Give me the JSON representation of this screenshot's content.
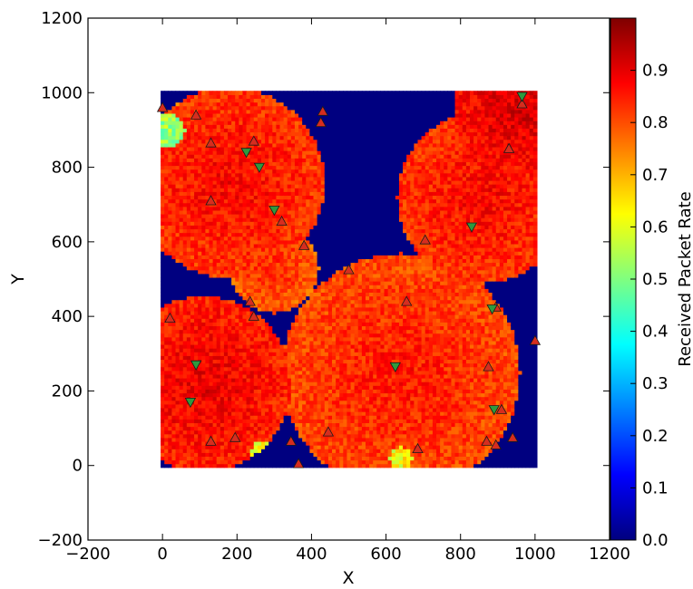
{
  "chart_data": {
    "type": "scatter",
    "xlabel": "X",
    "ylabel": "Y",
    "xlim": [
      -200,
      1200
    ],
    "ylim": [
      -200,
      1200
    ],
    "xticks": [
      "-200",
      "0",
      "200",
      "400",
      "600",
      "800",
      "1000",
      "1200"
    ],
    "yticks": [
      "-200",
      "0",
      "200",
      "400",
      "600",
      "800",
      "1000",
      "1200"
    ],
    "grid": false,
    "heatmap": {
      "extent_x": [
        0,
        1000
      ],
      "extent_y": [
        0,
        1000
      ],
      "coverage_disks": [
        {
          "x": 180,
          "y": 760,
          "r": 255,
          "value": 0.82
        },
        {
          "x": 960,
          "y": 960,
          "r": 175,
          "value": 0.86
        },
        {
          "x": 860,
          "y": 720,
          "r": 230,
          "value": 0.82
        },
        {
          "x": 110,
          "y": 220,
          "r": 235,
          "value": 0.84
        },
        {
          "x": 640,
          "y": 250,
          "r": 320,
          "value": 0.8
        },
        {
          "x": 300,
          "y": 530,
          "r": 120,
          "value": 0.78
        }
      ],
      "low_patches": [
        {
          "x": 15,
          "y": 900,
          "r": 45,
          "value": 0.45
        },
        {
          "x": 28,
          "y": 985,
          "r": 25,
          "value": 0.6
        },
        {
          "x": 640,
          "y": 20,
          "r": 30,
          "value": 0.55
        },
        {
          "x": 275,
          "y": 30,
          "r": 40,
          "value": 0.55
        }
      ]
    },
    "series": [
      {
        "marker": "triangle-up",
        "color": "#d62d1f",
        "points": [
          [
            0,
            960
          ],
          [
            90,
            940
          ],
          [
            430,
            950
          ],
          [
            425,
            920
          ],
          [
            130,
            865
          ],
          [
            245,
            870
          ],
          [
            930,
            850
          ],
          [
            130,
            710
          ],
          [
            320,
            655
          ],
          [
            380,
            590
          ],
          [
            705,
            605
          ],
          [
            500,
            525
          ],
          [
            655,
            440
          ],
          [
            235,
            440
          ],
          [
            245,
            400
          ],
          [
            20,
            395
          ],
          [
            895,
            425
          ],
          [
            1000,
            335
          ],
          [
            875,
            265
          ],
          [
            910,
            150
          ],
          [
            130,
            65
          ],
          [
            195,
            75
          ],
          [
            345,
            65
          ],
          [
            445,
            90
          ],
          [
            365,
            5
          ],
          [
            685,
            45
          ],
          [
            870,
            65
          ],
          [
            895,
            55
          ],
          [
            940,
            75
          ],
          [
            965,
            970
          ]
        ]
      },
      {
        "marker": "triangle-down",
        "color": "#2e9a3e",
        "points": [
          [
            225,
            840
          ],
          [
            260,
            800
          ],
          [
            300,
            685
          ],
          [
            830,
            640
          ],
          [
            885,
            420
          ],
          [
            90,
            270
          ],
          [
            625,
            265
          ],
          [
            75,
            170
          ],
          [
            890,
            150
          ],
          [
            965,
            990
          ]
        ]
      }
    ],
    "colorbar": {
      "label": "Received Packet Rate",
      "range": [
        0.0,
        1.0
      ],
      "ticks": [
        "0.0",
        "0.1",
        "0.2",
        "0.3",
        "0.4",
        "0.5",
        "0.6",
        "0.7",
        "0.8",
        "0.9"
      ]
    }
  }
}
